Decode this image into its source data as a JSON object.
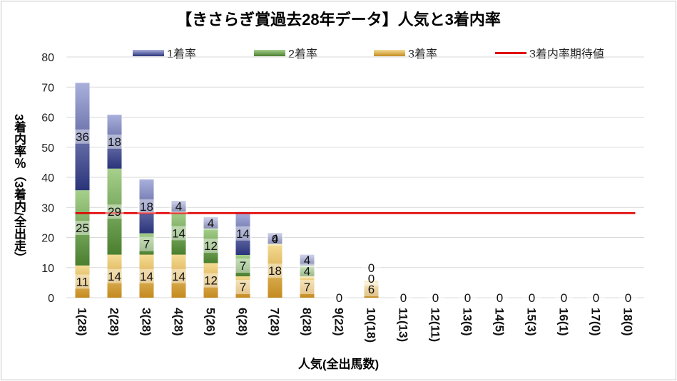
{
  "chart_data": {
    "type": "bar",
    "stacked": true,
    "title": "【きさらぎ賞過去28年データ】人気と3着内率",
    "xlabel": "人気(全出馬数)",
    "ylabel": "3着内率％（3着内/全出走）",
    "ylim": [
      0,
      80
    ],
    "yticks": [
      0,
      10,
      20,
      30,
      40,
      50,
      60,
      70,
      80
    ],
    "legend_position": "top",
    "categories": [
      "1(28)",
      "2(28)",
      "3(28)",
      "4(28)",
      "5(26)",
      "6(28)",
      "7(28)",
      "8(28)",
      "9(22)",
      "10(18)",
      "11(13)",
      "12(11)",
      "13(6)",
      "14(5)",
      "15(3)",
      "16(1)",
      "17(0)",
      "18(0)"
    ],
    "series": [
      {
        "name": "3着率",
        "color": "#d9a441",
        "values": [
          10.7,
          14.3,
          14.3,
          14.3,
          11.5,
          7.1,
          17.9,
          7.1,
          0,
          5.6,
          0,
          0,
          0,
          0,
          0,
          0,
          0,
          0
        ],
        "labels": [
          "11",
          "14",
          "14",
          "14",
          "12",
          "7",
          "18",
          "7",
          "",
          "6",
          "",
          "",
          "",
          "",
          "",
          "",
          "",
          ""
        ]
      },
      {
        "name": "2着率",
        "color": "#6aa04a",
        "values": [
          25.0,
          28.6,
          7.1,
          14.3,
          11.5,
          7.1,
          0,
          3.6,
          0,
          0,
          0,
          0,
          0,
          0,
          0,
          0,
          0,
          0
        ],
        "labels": [
          "25",
          "29",
          "7",
          "14",
          "12",
          "7",
          "",
          "4",
          "",
          "0",
          "",
          "",
          "",
          "",
          "",
          "",
          "",
          ""
        ]
      },
      {
        "name": "1着率",
        "color": "#3e4a96",
        "values": [
          35.7,
          17.9,
          17.9,
          3.6,
          3.8,
          14.3,
          3.6,
          3.6,
          0,
          0,
          0,
          0,
          0,
          0,
          0,
          0,
          0,
          0
        ],
        "labels": [
          "36",
          "18",
          "18",
          "4",
          "4",
          "14",
          "4",
          "4",
          "0",
          "0",
          "0",
          "0",
          "0",
          "0",
          "0",
          "0",
          "0",
          "0"
        ]
      }
    ],
    "zero_labels": [
      "",
      "",
      "",
      "",
      "",
      "",
      "0",
      "",
      "",
      "",
      "",
      "",
      "",
      "",
      "",
      "",
      "",
      ""
    ],
    "reference_line": {
      "name": "3着内率期待値",
      "value": 28.1,
      "color": "#e00000"
    },
    "grid": true
  }
}
